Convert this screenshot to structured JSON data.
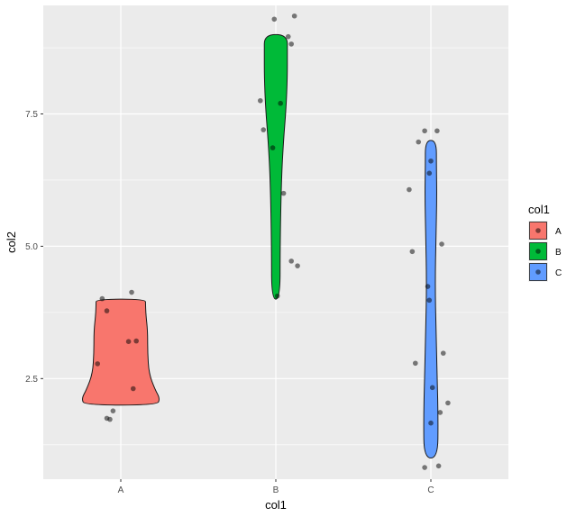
{
  "chart_data": {
    "type": "violin",
    "xlabel": "col1",
    "ylabel": "col2",
    "categories": [
      "A",
      "B",
      "C"
    ],
    "yticks": [
      2.5,
      5.0,
      7.5
    ],
    "ytick_labels": [
      "2.5",
      "5.0",
      "7.5"
    ],
    "ylim": [
      0.6,
      9.55
    ],
    "grid": true,
    "legend": {
      "title": "col1",
      "placement": "right",
      "entries": [
        {
          "label": "A",
          "color": "#F8766D"
        },
        {
          "label": "B",
          "color": "#00BA38"
        },
        {
          "label": "C",
          "color": "#619CFF"
        }
      ]
    },
    "series": [
      {
        "category": "A",
        "color": "#F8766D",
        "range": [
          2.0,
          4.0
        ],
        "points": [
          {
            "x": -0.07,
            "y": 1.73
          },
          {
            "x": -0.09,
            "y": 1.75
          },
          {
            "x": -0.05,
            "y": 1.89
          },
          {
            "x": -0.15,
            "y": 2.78
          },
          {
            "x": 0.08,
            "y": 2.31
          },
          {
            "x": 0.05,
            "y": 3.2
          },
          {
            "x": 0.1,
            "y": 3.21
          },
          {
            "x": -0.09,
            "y": 3.78
          },
          {
            "x": -0.12,
            "y": 4.01
          },
          {
            "x": 0.07,
            "y": 4.13
          }
        ]
      },
      {
        "category": "B",
        "color": "#00BA38",
        "range": [
          4.0,
          9.0
        ],
        "points": [
          {
            "x": 0.12,
            "y": 9.35
          },
          {
            "x": -0.01,
            "y": 9.29
          },
          {
            "x": 0.08,
            "y": 8.96
          },
          {
            "x": 0.1,
            "y": 8.82
          },
          {
            "x": -0.1,
            "y": 7.75
          },
          {
            "x": 0.03,
            "y": 7.7
          },
          {
            "x": -0.08,
            "y": 7.2
          },
          {
            "x": -0.02,
            "y": 6.86
          },
          {
            "x": 0.05,
            "y": 6.0
          },
          {
            "x": 0.1,
            "y": 4.72
          },
          {
            "x": 0.14,
            "y": 4.63
          },
          {
            "x": 0.01,
            "y": 4.06
          }
        ]
      },
      {
        "category": "C",
        "color": "#619CFF",
        "range": [
          1.0,
          7.0
        ],
        "points": [
          {
            "x": -0.04,
            "y": 7.18
          },
          {
            "x": 0.04,
            "y": 7.18
          },
          {
            "x": -0.08,
            "y": 6.97
          },
          {
            "x": 0.0,
            "y": 6.61
          },
          {
            "x": -0.01,
            "y": 6.38
          },
          {
            "x": -0.14,
            "y": 6.07
          },
          {
            "x": 0.07,
            "y": 5.04
          },
          {
            "x": -0.12,
            "y": 4.9
          },
          {
            "x": -0.02,
            "y": 4.24
          },
          {
            "x": -0.01,
            "y": 3.98
          },
          {
            "x": 0.08,
            "y": 2.98
          },
          {
            "x": -0.1,
            "y": 2.79
          },
          {
            "x": 0.01,
            "y": 2.33
          },
          {
            "x": 0.11,
            "y": 2.04
          },
          {
            "x": 0.06,
            "y": 1.86
          },
          {
            "x": 0.0,
            "y": 1.66
          },
          {
            "x": 0.05,
            "y": 0.85
          },
          {
            "x": -0.04,
            "y": 0.82
          }
        ]
      }
    ]
  }
}
